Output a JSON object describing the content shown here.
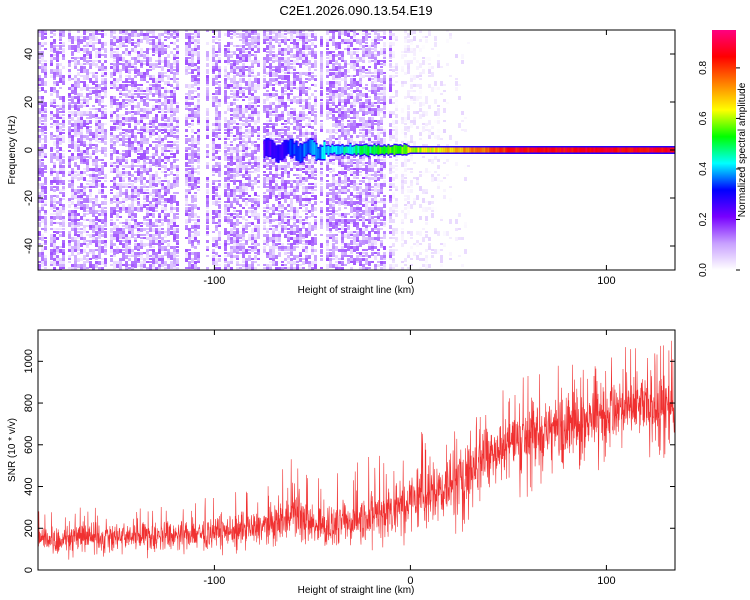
{
  "title": "C2E1.2026.090.13.54.E19",
  "chart_data": [
    {
      "type": "heatmap",
      "name": "spectrogram",
      "title": "C2E1.2026.090.13.54.E19",
      "xlabel": "Height of straight line (km)",
      "ylabel": "Frequency (Hz)",
      "xlim": [
        -190,
        135
      ],
      "ylim": [
        -50,
        50
      ],
      "xticks": [
        -100,
        0,
        100
      ],
      "xtick_labels": [
        "-100",
        "0",
        "100"
      ],
      "yticks": [
        -40,
        -20,
        0,
        20,
        40
      ],
      "ytick_labels": [
        "-40",
        "-20",
        "0",
        "20",
        "40"
      ],
      "colorbar": {
        "label": "Normalized spectral amplitude",
        "range": [
          0,
          0.95
        ],
        "ticks": [
          0.0,
          0.2,
          0.4,
          0.6,
          0.8
        ],
        "tick_labels": [
          "0.0",
          "0.2",
          "0.4",
          "0.6",
          "0.8"
        ],
        "colors": [
          "#ffffff",
          "#c8a0ff",
          "#7800ff",
          "#0000ff",
          "#00ffff",
          "#00ff00",
          "#ffff00",
          "#ff8000",
          "#ff0000",
          "#ff0080"
        ]
      },
      "features": [
        {
          "description": "broadband noise",
          "x_range": [
            -190,
            -10
          ],
          "f_range": [
            -50,
            50
          ],
          "amplitude": 0.1
        },
        {
          "description": "fading noise",
          "x_range": [
            -10,
            30
          ],
          "f_range": [
            -50,
            50
          ],
          "amplitude": 0.02
        },
        {
          "description": "signal band near 0 Hz",
          "x_range": [
            -75,
            135
          ],
          "f_center": 0,
          "amplitude_start": 0.25,
          "amplitude_end": 0.85
        }
      ]
    },
    {
      "type": "line",
      "name": "snr",
      "xlabel": "Height of straight line (km)",
      "ylabel": "SNR (10 * v/v)",
      "xlim": [
        -190,
        135
      ],
      "ylim": [
        0,
        1150
      ],
      "xticks": [
        -100,
        0,
        100
      ],
      "xtick_labels": [
        "-100",
        "0",
        "100"
      ],
      "yticks": [
        0,
        200,
        400,
        600,
        800,
        1000
      ],
      "ytick_labels": [
        "0",
        "200",
        "400",
        "600",
        "800",
        "1000"
      ],
      "color": "#f03030",
      "series": [
        {
          "name": "SNR",
          "x": [
            -190,
            -150,
            -100,
            -75,
            -60,
            -45,
            -20,
            0,
            20,
            40,
            60,
            80,
            100,
            120,
            135
          ],
          "mean": [
            150,
            160,
            180,
            210,
            260,
            200,
            260,
            330,
            400,
            560,
            650,
            700,
            750,
            780,
            760
          ],
          "low": [
            40,
            50,
            60,
            80,
            110,
            90,
            90,
            100,
            150,
            250,
            350,
            420,
            480,
            530,
            520
          ],
          "high": [
            300,
            310,
            350,
            420,
            560,
            430,
            560,
            700,
            760,
            880,
            950,
            1000,
            1050,
            1130,
            1100
          ]
        }
      ]
    }
  ]
}
